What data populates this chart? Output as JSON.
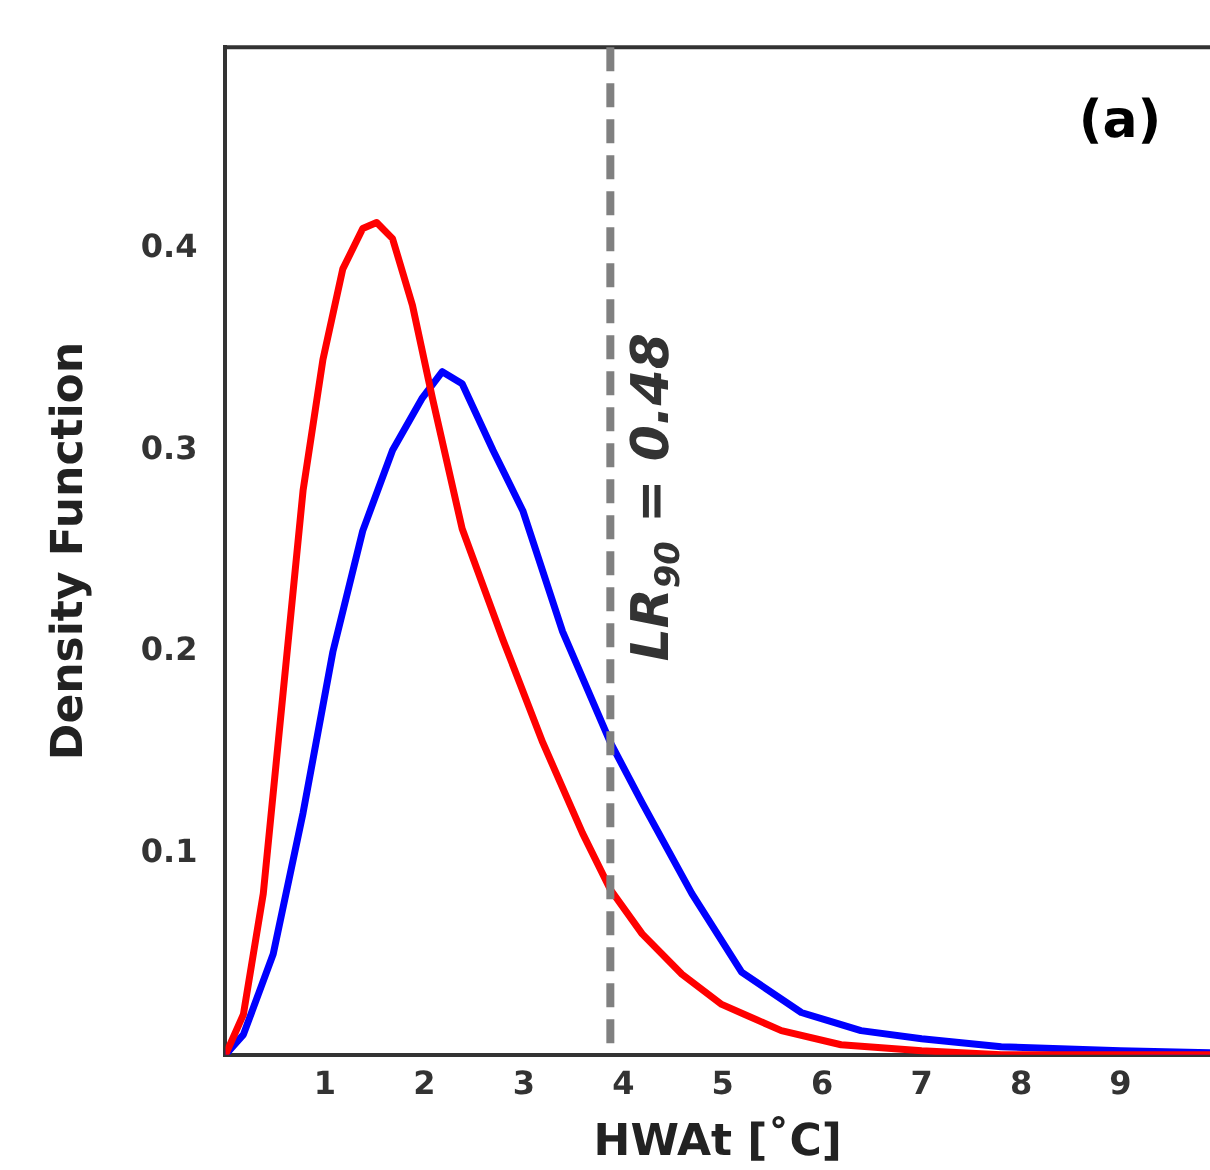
{
  "chart_data": {
    "type": "line",
    "xlabel": "HWAt [˚C]",
    "ylabel": "Density Function",
    "xlim": [
      0,
      9.9
    ],
    "xticks": [
      1,
      2,
      3,
      4,
      5,
      6,
      7,
      8,
      9
    ],
    "ylim": [
      0,
      0.5
    ],
    "yticks": [
      0.1,
      0.2,
      0.3,
      0.4
    ],
    "grid": false,
    "legend": false,
    "marker": "none",
    "line_style": "solid",
    "series": [
      {
        "color": "#ff0000",
        "x": [
          0,
          0.18,
          0.38,
          0.58,
          0.78,
          0.98,
          1.18,
          1.38,
          1.52,
          1.68,
          1.88,
          2.08,
          2.38,
          2.79,
          3.19,
          3.59,
          3.87,
          4.19,
          4.59,
          4.99,
          5.59,
          6.19,
          7.0,
          7.8,
          9.9
        ],
        "values": [
          0,
          0.02,
          0.08,
          0.18,
          0.28,
          0.345,
          0.39,
          0.41,
          0.413,
          0.405,
          0.372,
          0.326,
          0.261,
          0.206,
          0.155,
          0.11,
          0.082,
          0.06,
          0.04,
          0.025,
          0.012,
          0.005,
          0.002,
          0,
          0
        ]
      },
      {
        "color": "#0000ff",
        "x": [
          0,
          0.18,
          0.48,
          0.78,
          1.08,
          1.38,
          1.68,
          1.98,
          2.18,
          2.38,
          2.69,
          2.99,
          3.39,
          3.87,
          4.19,
          4.69,
          5.19,
          5.79,
          6.39,
          7.0,
          7.8,
          9.0,
          9.9
        ],
        "values": [
          0,
          0.01,
          0.05,
          0.12,
          0.2,
          0.26,
          0.3,
          0.326,
          0.339,
          0.333,
          0.3,
          0.27,
          0.21,
          0.155,
          0.125,
          0.08,
          0.041,
          0.021,
          0.012,
          0.008,
          0.004,
          0.002,
          0.001
        ]
      }
    ],
    "ref_lines": [
      {
        "axis": "x",
        "value": 3.87,
        "color": "#808080",
        "line_style": "dashed"
      }
    ],
    "annotations": [
      "(a)",
      "LR$_{90}$ = 0.48"
    ]
  }
}
